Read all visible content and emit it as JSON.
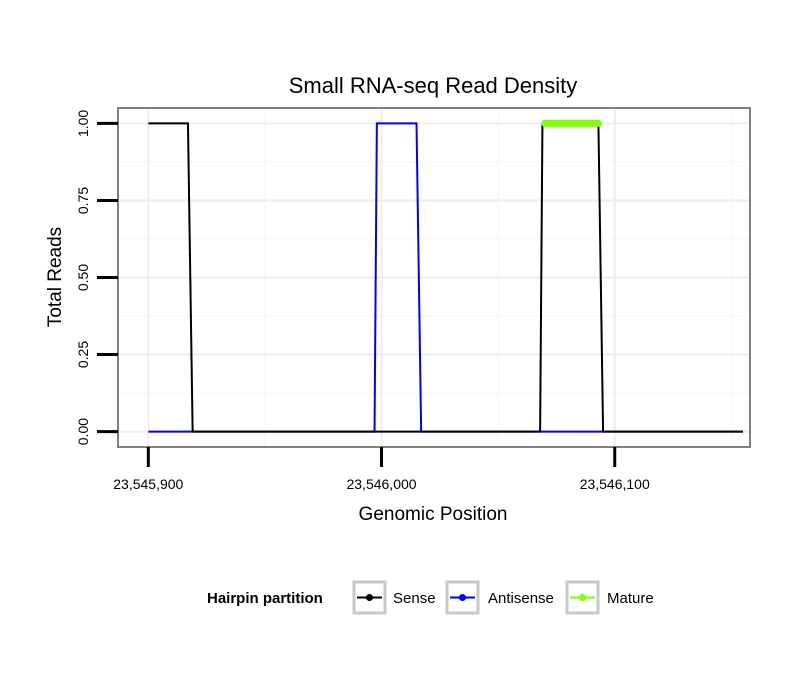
{
  "chart_data": {
    "type": "line",
    "title": "Small RNA-seq Read Density",
    "xlabel": "Genomic Position",
    "ylabel": "Total Reads",
    "xlim": [
      23545887,
      23546158
    ],
    "ylim": [
      -0.05,
      1.05
    ],
    "x_ticks": [
      23545900,
      23546000,
      23546100
    ],
    "x_tick_labels": [
      "23,545,900",
      "23,546,000",
      "23,546,100"
    ],
    "y_ticks": [
      0,
      0.25,
      0.5,
      0.75,
      1.0
    ],
    "y_tick_labels": [
      "0.00",
      "0.25",
      "0.50",
      "0.75",
      "1.00"
    ],
    "grid": true,
    "legend": {
      "title": "Hairpin partition",
      "position": "bottom",
      "entries": [
        {
          "name": "Sense",
          "color": "#000000"
        },
        {
          "name": "Antisense",
          "color": "#0000ff"
        },
        {
          "name": "Mature",
          "color": "#7fff00"
        }
      ]
    },
    "series": [
      {
        "name": "Sense",
        "color": "#000000",
        "x": [
          23545900,
          23545917,
          23545919,
          23546068,
          23546069,
          23546093,
          23546095,
          23546155
        ],
        "y": [
          1,
          1,
          0,
          0,
          1,
          1,
          0,
          0
        ]
      },
      {
        "name": "Antisense",
        "color": "#0000ff",
        "x": [
          23545900,
          23545997,
          23545998,
          23546015,
          23546017,
          23546155
        ],
        "y": [
          0,
          0,
          1,
          1,
          0,
          0
        ]
      },
      {
        "name": "Mature",
        "color": "#7fff00",
        "x": [
          23546070,
          23546093
        ],
        "y": [
          1,
          1
        ]
      }
    ]
  }
}
